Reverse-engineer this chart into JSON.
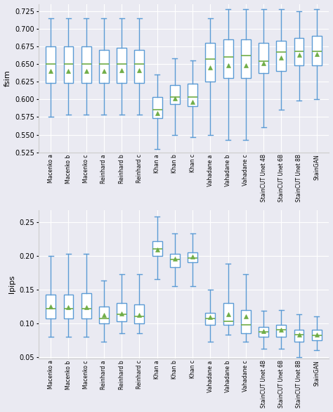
{
  "categories": [
    "Macenko a",
    "Macenko b",
    "Macenko c",
    "Reinhard a",
    "Reinhard b",
    "Reinhard c",
    "Khan a",
    "Khan b",
    "Khan c",
    "Vahadane a",
    "Vahadane b",
    "Vahadane c",
    "StainCUT Unet 4B",
    "StainCUT Unet 6B",
    "StainCUT Unet 8B",
    "StainGAN"
  ],
  "fsim_whislo": [
    0.575,
    0.578,
    0.578,
    0.578,
    0.578,
    0.578,
    0.53,
    0.55,
    0.547,
    0.55,
    0.543,
    0.543,
    0.56,
    0.585,
    0.598,
    0.6
  ],
  "fsim_q1": [
    0.623,
    0.623,
    0.623,
    0.623,
    0.623,
    0.623,
    0.573,
    0.593,
    0.59,
    0.625,
    0.63,
    0.63,
    0.637,
    0.64,
    0.648,
    0.648
  ],
  "fsim_med": [
    0.65,
    0.65,
    0.65,
    0.65,
    0.65,
    0.65,
    0.585,
    0.603,
    0.603,
    0.657,
    0.66,
    0.662,
    0.654,
    0.667,
    0.668,
    0.668
  ],
  "fsim_q3": [
    0.675,
    0.675,
    0.675,
    0.67,
    0.673,
    0.67,
    0.603,
    0.62,
    0.622,
    0.68,
    0.685,
    0.685,
    0.68,
    0.683,
    0.687,
    0.69
  ],
  "fsim_whishi": [
    0.715,
    0.715,
    0.715,
    0.715,
    0.715,
    0.715,
    0.635,
    0.658,
    0.655,
    0.715,
    0.728,
    0.728,
    0.728,
    0.728,
    0.725,
    0.728
  ],
  "fsim_mean": [
    0.64,
    0.64,
    0.64,
    0.64,
    0.641,
    0.641,
    0.58,
    0.601,
    0.596,
    0.645,
    0.648,
    0.648,
    0.651,
    0.659,
    0.663,
    0.664
  ],
  "lpips_whislo": [
    0.08,
    0.08,
    0.08,
    0.073,
    0.085,
    0.085,
    0.165,
    0.155,
    0.155,
    0.073,
    0.083,
    0.073,
    0.062,
    0.062,
    0.05,
    0.06
  ],
  "lpips_q1": [
    0.107,
    0.107,
    0.107,
    0.1,
    0.103,
    0.1,
    0.2,
    0.183,
    0.19,
    0.098,
    0.098,
    0.085,
    0.08,
    0.08,
    0.073,
    0.075
  ],
  "lpips_med": [
    0.122,
    0.122,
    0.122,
    0.107,
    0.113,
    0.11,
    0.21,
    0.195,
    0.197,
    0.107,
    0.103,
    0.098,
    0.087,
    0.09,
    0.083,
    0.082
  ],
  "lpips_q3": [
    0.143,
    0.143,
    0.145,
    0.125,
    0.13,
    0.128,
    0.222,
    0.203,
    0.205,
    0.115,
    0.13,
    0.12,
    0.095,
    0.098,
    0.09,
    0.09
  ],
  "lpips_whishi": [
    0.2,
    0.203,
    0.203,
    0.163,
    0.173,
    0.173,
    0.258,
    0.233,
    0.233,
    0.15,
    0.188,
    0.173,
    0.118,
    0.12,
    0.113,
    0.11
  ],
  "lpips_mean": [
    0.125,
    0.124,
    0.124,
    0.112,
    0.114,
    0.112,
    0.209,
    0.196,
    0.199,
    0.109,
    0.113,
    0.11,
    0.088,
    0.09,
    0.083,
    0.083
  ],
  "box_color": "#5b9bd5",
  "median_color": "#70ad47",
  "mean_color": "#70ad47",
  "whisker_color": "#5b9bd5",
  "cap_color": "#5b9bd5",
  "fsim_ylim": [
    0.525,
    0.735
  ],
  "lpips_ylim": [
    0.048,
    0.268
  ],
  "fsim_yticks": [
    0.525,
    0.55,
    0.575,
    0.6,
    0.625,
    0.65,
    0.675,
    0.7,
    0.725
  ],
  "lpips_yticks": [
    0.05,
    0.1,
    0.15,
    0.2,
    0.25
  ],
  "fsim_ylabel": "fsim",
  "lpips_ylabel": "lpips",
  "bg_color": "#eaeaf2",
  "grid_color": "#ffffff",
  "spine_color": "#cccccc"
}
